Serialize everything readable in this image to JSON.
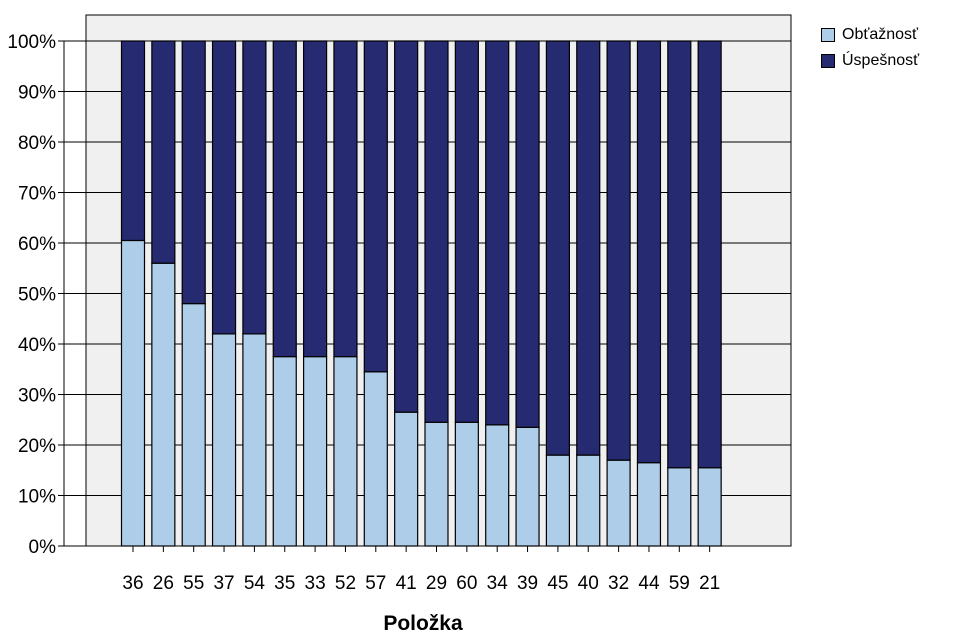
{
  "chart_data": {
    "type": "bar",
    "stacked": true,
    "percent": true,
    "categories": [
      "36",
      "26",
      "55",
      "37",
      "54",
      "35",
      "33",
      "52",
      "57",
      "41",
      "29",
      "60",
      "34",
      "39",
      "45",
      "40",
      "32",
      "44",
      "59",
      "21"
    ],
    "series": [
      {
        "name": "Obťažnosť",
        "color": "#aecde9",
        "values": [
          60.5,
          56,
          48,
          42,
          42,
          37.5,
          37.5,
          37.5,
          34.5,
          26.5,
          24.5,
          24.5,
          24,
          23.5,
          18,
          18,
          17,
          16.5,
          15.5,
          15.5
        ]
      },
      {
        "name": "Úspešnosť",
        "color": "#262a70",
        "values": [
          39.5,
          44,
          52,
          58,
          58,
          62.5,
          62.5,
          62.5,
          65.5,
          73.5,
          75.5,
          75.5,
          76,
          76.5,
          82,
          82,
          83,
          83.5,
          84.5,
          84.5
        ]
      }
    ],
    "y_ticks": [
      "0%",
      "10%",
      "20%",
      "30%",
      "40%",
      "50%",
      "60%",
      "70%",
      "80%",
      "90%",
      "100%"
    ],
    "ylim": [
      0,
      100
    ],
    "xlabel": "Položka",
    "ylabel": "",
    "legend_position": "top-right",
    "plot_background": "#f0f0f0",
    "grid": true
  }
}
